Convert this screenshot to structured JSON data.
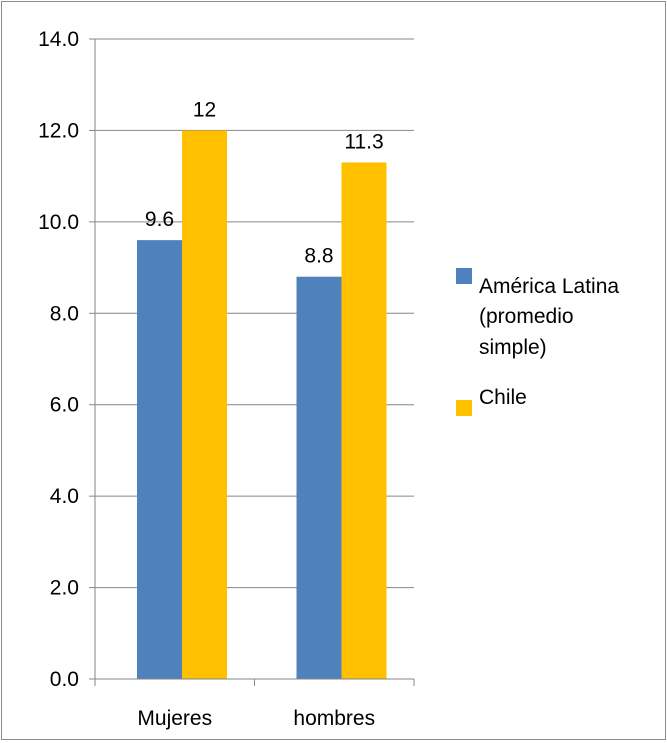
{
  "chart_data": {
    "type": "bar",
    "categories": [
      "Mujeres",
      "hombres"
    ],
    "series": [
      {
        "name": "América Latina (promedio simple)",
        "values": [
          9.6,
          8.8
        ],
        "color": "#4F81BD"
      },
      {
        "name": "Chile",
        "values": [
          12,
          11.3
        ],
        "color": "#FFC000"
      }
    ],
    "data_labels": [
      [
        "9.6",
        "8.8"
      ],
      [
        "12",
        "11.3"
      ]
    ],
    "legend_lines": [
      [
        "América Latina",
        "(promedio",
        "simple)"
      ],
      [
        "Chile"
      ]
    ],
    "y_ticks": [
      "0.0",
      "2.0",
      "4.0",
      "6.0",
      "8.0",
      "10.0",
      "12.0",
      "14.0"
    ],
    "ylim": [
      0,
      14
    ],
    "grid": true,
    "legend_position": "right",
    "gridline_color": "#868686"
  }
}
